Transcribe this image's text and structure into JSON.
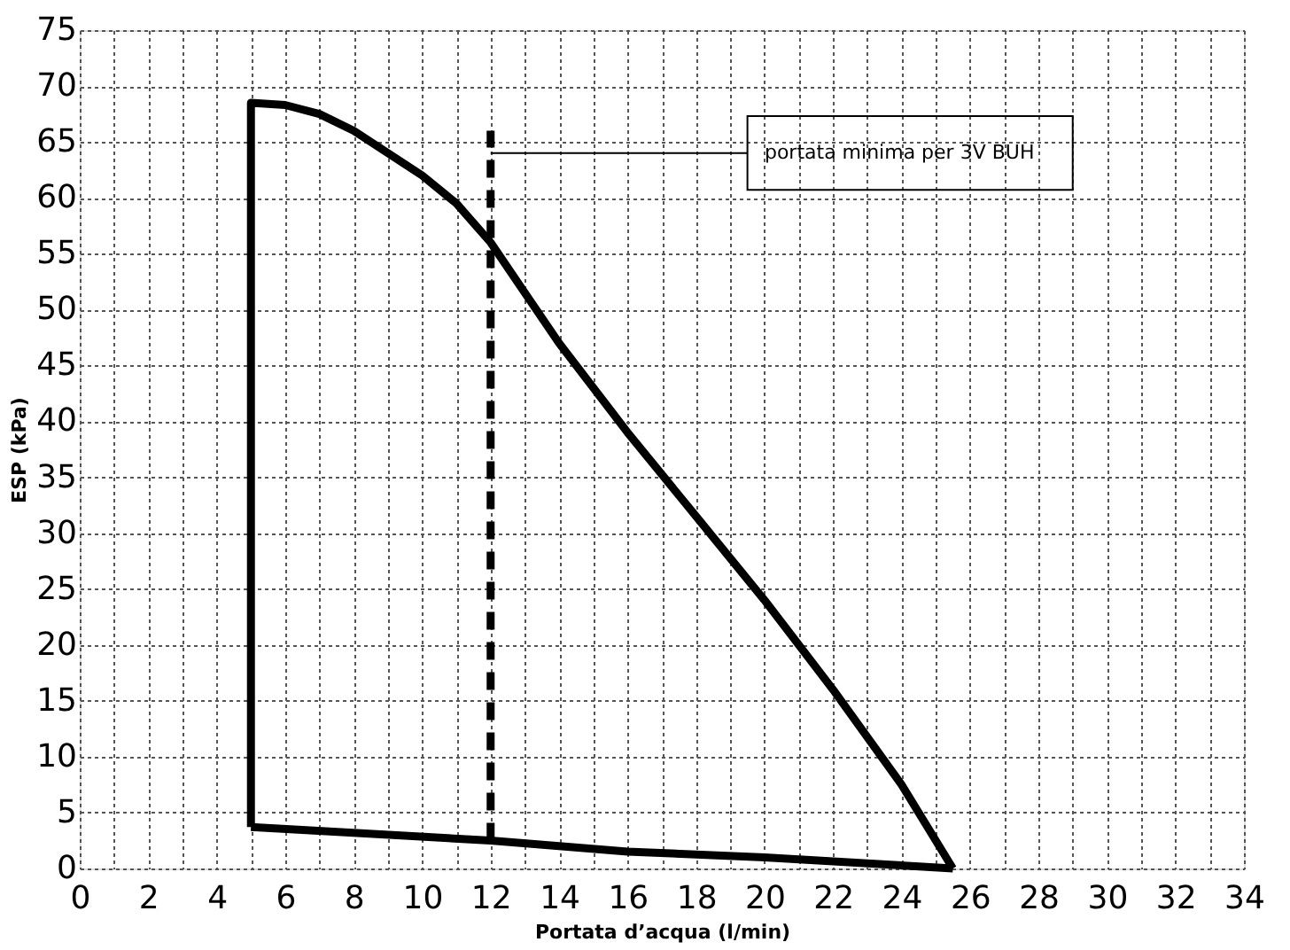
{
  "chart_data": {
    "type": "line",
    "xlabel": "Portata d’acqua (l/min)",
    "ylabel": "ESP (kPa)",
    "xlim": [
      0,
      34
    ],
    "ylim": [
      0,
      75
    ],
    "xticks": [
      0,
      2,
      4,
      6,
      8,
      10,
      12,
      14,
      16,
      18,
      20,
      22,
      24,
      26,
      28,
      30,
      32,
      34
    ],
    "yticks": [
      0,
      5,
      10,
      15,
      20,
      25,
      30,
      35,
      40,
      45,
      50,
      55,
      60,
      65,
      70,
      75
    ],
    "grid": true,
    "legend": false,
    "marker": "none",
    "series": [
      {
        "color": "#000000",
        "line_style": "solid",
        "x": [
          5,
          5,
          6,
          7,
          8,
          9,
          10,
          11,
          12,
          13,
          14,
          16,
          18,
          20,
          22,
          24,
          25.5
        ],
        "values": [
          3.7,
          68.5,
          68.3,
          67.5,
          66,
          64,
          62,
          59.5,
          56,
          51.5,
          47,
          39,
          31.5,
          24,
          16,
          7.5,
          0
        ]
      },
      {
        "color": "#000000",
        "line_style": "solid",
        "x": [
          5,
          12,
          16,
          20,
          25.5
        ],
        "values": [
          3.7,
          2.5,
          1.5,
          1,
          0
        ]
      },
      {
        "color": "#000000",
        "line_style": "dashed",
        "x": [
          12,
          12
        ],
        "values": [
          2.5,
          66
        ]
      }
    ],
    "annotations": [
      {
        "text": "portata minima per 3V BUH",
        "x": 12,
        "y": 64
      }
    ]
  }
}
